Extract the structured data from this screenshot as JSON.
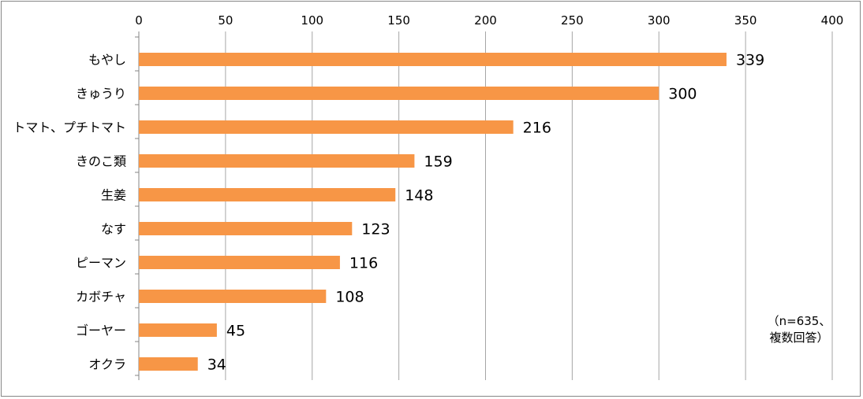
{
  "chart_data": {
    "type": "bar",
    "orientation": "horizontal",
    "categories": [
      "もやし",
      "きゅうり",
      "トマト、プチトマト",
      "きのこ類",
      "生姜",
      "なす",
      "ピーマン",
      "カボチャ",
      "ゴーヤー",
      "オクラ"
    ],
    "values": [
      339,
      300,
      216,
      159,
      148,
      123,
      116,
      108,
      45,
      34
    ],
    "xlim": [
      0,
      400
    ],
    "xticks": [
      0,
      50,
      100,
      150,
      200,
      250,
      300,
      350,
      400
    ],
    "x_axis_position": "top",
    "grid": true,
    "bar_color": "#F79646",
    "grid_color": "#A6A6A6",
    "annotation": "（n=635、\n複数回答）"
  }
}
